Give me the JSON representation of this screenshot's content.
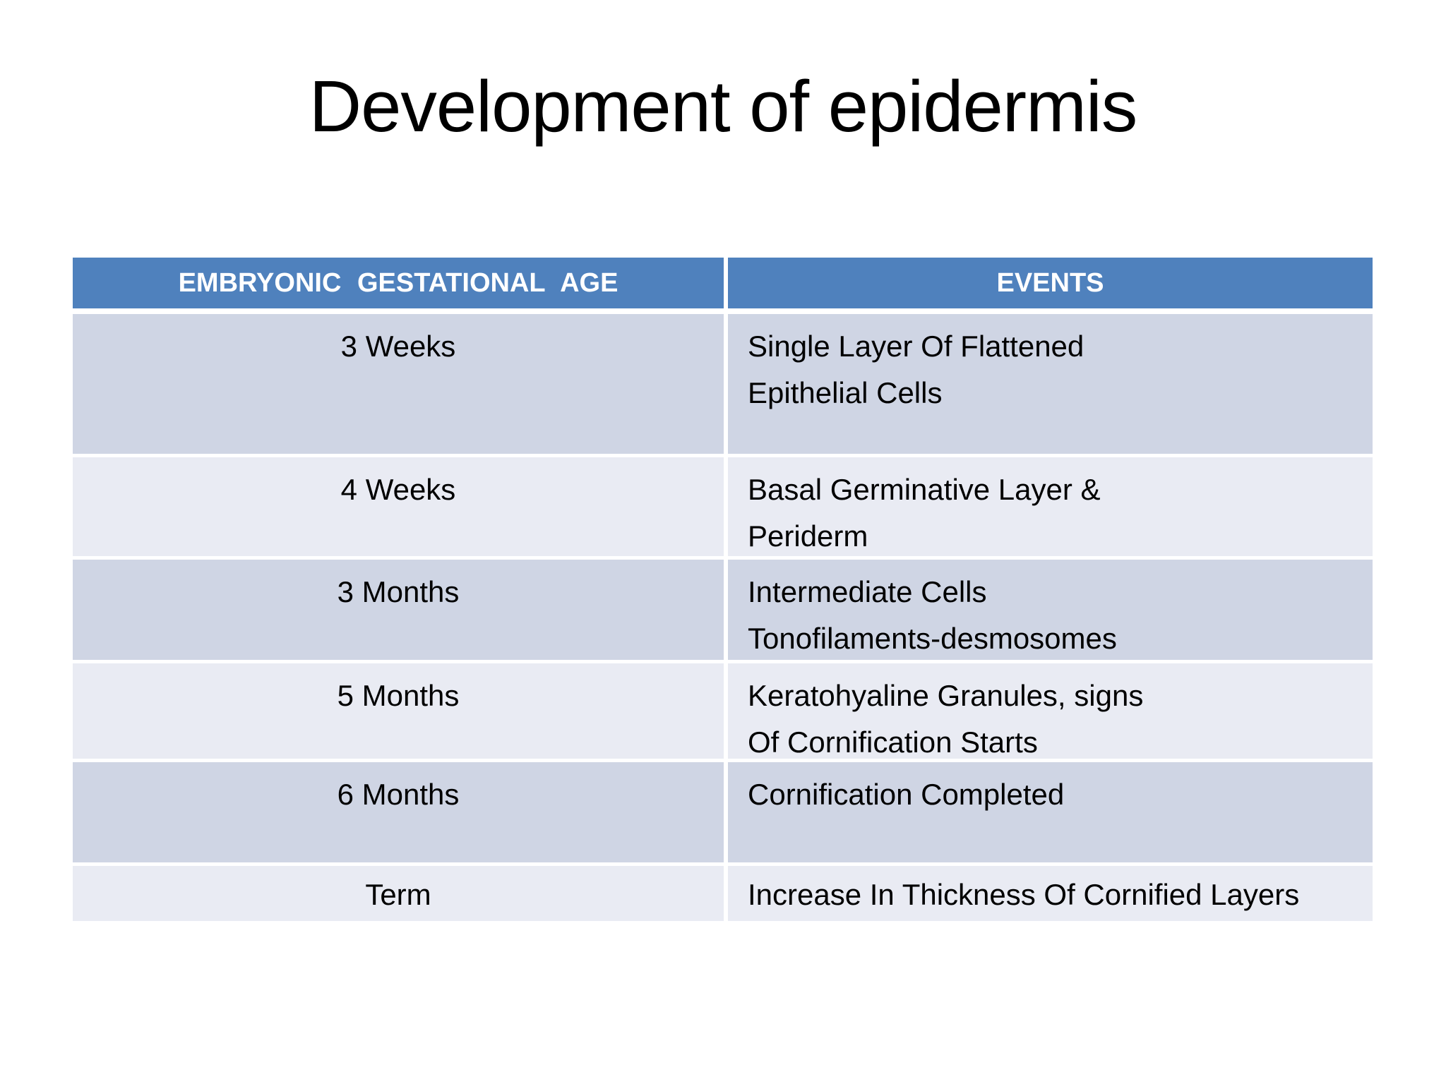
{
  "slide": {
    "title": "Development of epidermis"
  },
  "table": {
    "headers": [
      "EMBRYONIC GESTATIONAL AGE",
      "EVENTS"
    ],
    "rows": [
      {
        "age": "3 Weeks",
        "event_lines": [
          "Single Layer Of Flattened",
          "Epithelial Cells"
        ]
      },
      {
        "age": "4 Weeks",
        "event_lines": [
          "Basal Germinative Layer &",
          "Periderm"
        ]
      },
      {
        "age": "3 Months",
        "event_lines": [
          "Intermediate Cells",
          "Tonofilaments-desmosomes"
        ]
      },
      {
        "age": "5 Months",
        "event_lines": [
          "Keratohyaline Granules, signs",
          "Of Cornification Starts"
        ]
      },
      {
        "age": "6 Months",
        "event_lines": [
          "Cornification Completed"
        ]
      },
      {
        "age": "Term",
        "event_lines": [
          "Increase In Thickness Of Cornified Layers"
        ]
      }
    ],
    "colors": {
      "header_bg": "#4f81bd",
      "header_text": "#ffffff",
      "row_dark_bg": "#cfd5e4",
      "row_light_bg": "#e9ebf3",
      "gutter": "#ffffff",
      "body_text": "#000000",
      "title_text": "#000000"
    }
  }
}
